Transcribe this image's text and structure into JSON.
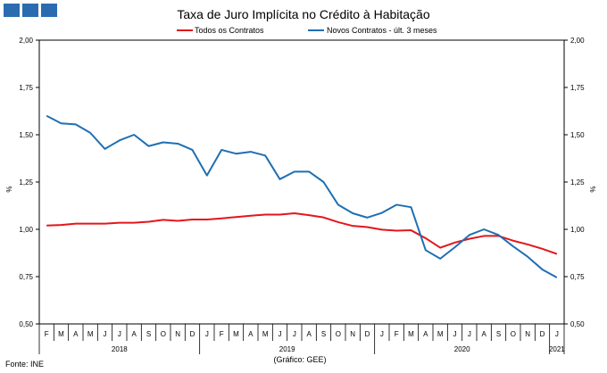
{
  "chart_data": {
    "type": "line",
    "title": "Taxa de Juro Implícita no Crédito à Habitação",
    "ylabel": "%",
    "ylim": [
      0.5,
      2.0
    ],
    "yticks": [
      "0,50",
      "0,75",
      "1,00",
      "1,25",
      "1,50",
      "1,75",
      "2,00"
    ],
    "month_labels": [
      "F",
      "M",
      "A",
      "M",
      "J",
      "J",
      "A",
      "S",
      "O",
      "N",
      "D",
      "J",
      "F",
      "M",
      "A",
      "M",
      "J",
      "J",
      "A",
      "S",
      "O",
      "N",
      "D",
      "J",
      "F",
      "M",
      "A",
      "M",
      "J",
      "J",
      "A",
      "S",
      "O",
      "N",
      "D",
      "J"
    ],
    "years": [
      {
        "label": "2018",
        "start": 0,
        "end": 10
      },
      {
        "label": "2019",
        "start": 11,
        "end": 22
      },
      {
        "label": "2020",
        "start": 23,
        "end": 34
      },
      {
        "label": "2021",
        "start": 35,
        "end": 35
      }
    ],
    "series": [
      {
        "name": "Todos os Contratos",
        "color": "#e3161b",
        "values": [
          1.02,
          1.023,
          1.03,
          1.03,
          1.03,
          1.035,
          1.035,
          1.04,
          1.05,
          1.045,
          1.052,
          1.052,
          1.058,
          1.065,
          1.072,
          1.078,
          1.078,
          1.085,
          1.075,
          1.063,
          1.038,
          1.018,
          1.012,
          0.998,
          0.993,
          0.995,
          0.953,
          0.903,
          0.93,
          0.95,
          0.965,
          0.965,
          0.94,
          0.92,
          0.897,
          0.87
        ]
      },
      {
        "name": "Novos Contratos - últ. 3 meses",
        "color": "#1f6fb3",
        "values": [
          1.6,
          1.56,
          1.555,
          1.51,
          1.425,
          1.47,
          1.5,
          1.44,
          1.46,
          1.453,
          1.42,
          1.285,
          1.42,
          1.4,
          1.41,
          1.39,
          1.265,
          1.305,
          1.305,
          1.25,
          1.13,
          1.085,
          1.062,
          1.087,
          1.13,
          1.117,
          0.89,
          0.845,
          0.905,
          0.97,
          1.0,
          0.97,
          0.91,
          0.855,
          0.788,
          0.745
        ]
      }
    ],
    "grid": false,
    "legend_position": "top"
  },
  "footer": {
    "source": "Fonte: INE",
    "credit": "(Gráfico: GEE)"
  }
}
